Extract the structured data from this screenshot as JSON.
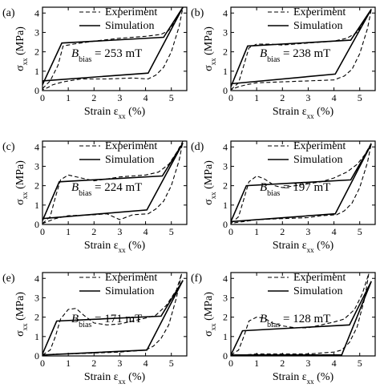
{
  "chart_data": [
    {
      "type": "line",
      "panel_label": "(a)",
      "annotation": {
        "prefix": "B",
        "subscript": "bias",
        "value_text": " = 253 mT"
      },
      "xlabel": {
        "main": "Strain ε",
        "sub": "xx",
        "unit": " (%)"
      },
      "ylabel": {
        "main": "σ",
        "sub": "xx",
        "unit": " (MPa)"
      },
      "xlim": [
        0,
        5.6
      ],
      "ylim": [
        0,
        4.3
      ],
      "xticks": [
        0,
        1,
        2,
        3,
        4,
        5
      ],
      "yticks": [
        0,
        1,
        2,
        3,
        4
      ],
      "legend": {
        "placement": "top-right",
        "entries": [
          "Experiment",
          "Simulation"
        ]
      },
      "series": [
        {
          "name": "Experiment",
          "style": "dashed",
          "x": [
            0,
            0.3,
            0.6,
            0.8,
            1.2,
            2.0,
            3.0,
            4.0,
            4.6,
            4.9,
            5.1,
            5.3,
            5.45,
            5.3,
            5.0,
            4.7,
            4.4,
            4.1,
            3.5,
            2.5,
            1.5,
            0.8,
            0.4,
            0.2,
            0
          ],
          "y": [
            0.1,
            0.5,
            1.3,
            2.3,
            2.4,
            2.55,
            2.7,
            2.8,
            2.9,
            3.1,
            3.5,
            4.0,
            4.3,
            3.3,
            2.0,
            1.2,
            0.8,
            0.6,
            0.65,
            0.6,
            0.6,
            0.45,
            0.3,
            0.15,
            0.05
          ]
        },
        {
          "name": "Simulation",
          "style": "solid",
          "x": [
            0,
            0.75,
            4.7,
            5.45,
            4.1,
            0,
            0
          ],
          "y": [
            0.3,
            2.45,
            2.75,
            4.3,
            0.9,
            0.5,
            0.3
          ]
        }
      ]
    },
    {
      "type": "line",
      "panel_label": "(b)",
      "annotation": {
        "prefix": "B",
        "subscript": "bias",
        "value_text": " = 238 mT"
      },
      "xlabel": {
        "main": "Strain ε",
        "sub": "xx",
        "unit": " (%)"
      },
      "ylabel": {
        "main": "σ",
        "sub": "xx",
        "unit": " (MPa)"
      },
      "xlim": [
        0,
        5.6
      ],
      "ylim": [
        0,
        4.3
      ],
      "xticks": [
        0,
        1,
        2,
        3,
        4,
        5
      ],
      "yticks": [
        0,
        1,
        2,
        3,
        4
      ],
      "legend": {
        "placement": "top-right",
        "entries": [
          "Experiment",
          "Simulation"
        ]
      },
      "series": [
        {
          "name": "Experiment",
          "style": "dashed",
          "x": [
            0,
            0.3,
            0.5,
            0.7,
            1.0,
            1.5,
            2.0,
            3.0,
            4.0,
            4.5,
            4.9,
            5.2,
            5.45,
            5.3,
            5.0,
            4.7,
            4.4,
            4.0,
            3.0,
            2.0,
            1.0,
            0.6,
            0.3,
            0
          ],
          "y": [
            0.05,
            0.4,
            1.3,
            2.2,
            2.4,
            2.4,
            2.35,
            2.45,
            2.55,
            2.7,
            3.0,
            3.6,
            4.2,
            3.2,
            1.9,
            1.1,
            0.75,
            0.55,
            0.5,
            0.45,
            0.4,
            0.3,
            0.2,
            0.05
          ]
        },
        {
          "name": "Simulation",
          "style": "solid",
          "x": [
            0,
            0.65,
            4.65,
            5.45,
            4.05,
            0,
            0
          ],
          "y": [
            0.2,
            2.3,
            2.6,
            4.2,
            0.85,
            0.35,
            0.2
          ]
        }
      ]
    },
    {
      "type": "line",
      "panel_label": "(c)",
      "annotation": {
        "prefix": "B",
        "subscript": "bias",
        "value_text": " = 224 mT"
      },
      "xlabel": {
        "main": "Strain ε",
        "sub": "xx",
        "unit": " (%)"
      },
      "ylabel": {
        "main": "σ",
        "sub": "xx",
        "unit": " (MPa)"
      },
      "xlim": [
        0,
        5.6
      ],
      "ylim": [
        0,
        4.3
      ],
      "xticks": [
        0,
        1,
        2,
        3,
        4,
        5
      ],
      "yticks": [
        0,
        1,
        2,
        3,
        4
      ],
      "legend": {
        "placement": "top-right",
        "entries": [
          "Experiment",
          "Simulation"
        ]
      },
      "series": [
        {
          "name": "Experiment",
          "style": "dashed",
          "x": [
            0,
            0.3,
            0.5,
            0.7,
            1.0,
            1.5,
            2.0,
            2.5,
            3.0,
            3.5,
            4.0,
            4.5,
            4.9,
            5.2,
            5.45,
            5.3,
            5.0,
            4.7,
            4.4,
            4.1,
            3.5,
            3.0,
            2.5,
            2.0,
            1.0,
            0.5,
            0.2,
            0
          ],
          "y": [
            0.05,
            0.4,
            1.4,
            2.3,
            2.55,
            2.4,
            2.25,
            2.35,
            2.45,
            2.5,
            2.55,
            2.7,
            3.1,
            3.7,
            4.3,
            3.3,
            2.0,
            1.2,
            0.8,
            0.55,
            0.5,
            0.25,
            0.55,
            0.5,
            0.45,
            0.3,
            0.15,
            0.05
          ]
        },
        {
          "name": "Simulation",
          "style": "solid",
          "x": [
            0,
            0.65,
            4.65,
            5.45,
            4.05,
            0,
            0
          ],
          "y": [
            0.2,
            2.2,
            2.5,
            4.2,
            0.75,
            0.3,
            0.2
          ]
        }
      ]
    },
    {
      "type": "line",
      "panel_label": "(d)",
      "annotation": {
        "prefix": "B",
        "subscript": "bias",
        "value_text": " = 197 mT"
      },
      "xlabel": {
        "main": "Strain ε",
        "sub": "xx",
        "unit": " (%)"
      },
      "ylabel": {
        "main": "σ",
        "sub": "xx",
        "unit": " (MPa)"
      },
      "xlim": [
        0,
        5.6
      ],
      "ylim": [
        0,
        4.3
      ],
      "xticks": [
        0,
        1,
        2,
        3,
        4,
        5
      ],
      "yticks": [
        0,
        1,
        2,
        3,
        4
      ],
      "legend": {
        "placement": "top-right",
        "entries": [
          "Experiment",
          "Simulation"
        ]
      },
      "series": [
        {
          "name": "Experiment",
          "style": "dashed",
          "x": [
            0,
            0.3,
            0.5,
            0.7,
            1.0,
            1.3,
            1.7,
            2.0,
            2.5,
            3.0,
            3.5,
            4.0,
            4.5,
            4.9,
            5.2,
            5.45,
            5.3,
            5.0,
            4.7,
            4.4,
            4.1,
            3.5,
            3.0,
            2.0,
            1.0,
            0.5,
            0.2,
            0
          ],
          "y": [
            0.05,
            0.4,
            1.3,
            2.2,
            2.5,
            2.35,
            2.0,
            1.9,
            2.0,
            2.1,
            2.2,
            2.4,
            2.7,
            3.1,
            3.6,
            4.2,
            3.2,
            1.9,
            1.1,
            0.7,
            0.5,
            0.45,
            0.35,
            0.3,
            0.25,
            0.15,
            0.1,
            0.05
          ]
        },
        {
          "name": "Simulation",
          "style": "solid",
          "x": [
            0,
            0.6,
            4.65,
            5.45,
            4.05,
            0,
            0
          ],
          "y": [
            0.15,
            2.0,
            2.3,
            4.15,
            0.55,
            0.15,
            0.15
          ]
        }
      ]
    },
    {
      "type": "line",
      "panel_label": "(e)",
      "annotation": {
        "prefix": "B",
        "subscript": "bias",
        "value_text": " = 171 mT"
      },
      "xlabel": {
        "main": "Strain ε",
        "sub": "xx",
        "unit": " (%)"
      },
      "ylabel": {
        "main": "σ",
        "sub": "xx",
        "unit": " (MPa)"
      },
      "xlim": [
        0,
        5.6
      ],
      "ylim": [
        0,
        4.3
      ],
      "xticks": [
        0,
        1,
        2,
        3,
        4,
        5
      ],
      "yticks": [
        0,
        1,
        2,
        3,
        4
      ],
      "legend": {
        "placement": "top-right",
        "entries": [
          "Experiment",
          "Simulation"
        ]
      },
      "series": [
        {
          "name": "Experiment",
          "style": "dashed",
          "x": [
            0,
            0.3,
            0.5,
            0.7,
            1.0,
            1.3,
            1.6,
            2.0,
            2.5,
            3.0,
            3.5,
            4.0,
            4.4,
            4.8,
            5.2,
            5.4,
            5.2,
            4.9,
            4.6,
            4.3,
            4.0,
            3.0,
            2.0,
            1.0,
            0.5,
            0.2,
            0
          ],
          "y": [
            0.05,
            0.3,
            1.0,
            1.9,
            2.4,
            2.45,
            2.1,
            1.7,
            1.6,
            1.65,
            1.8,
            1.95,
            2.1,
            2.6,
            3.4,
            4.25,
            3.0,
            1.6,
            0.9,
            0.5,
            0.3,
            0.2,
            0.15,
            0.1,
            0.1,
            0.05,
            0.05
          ]
        },
        {
          "name": "Simulation",
          "style": "solid",
          "x": [
            0,
            0.55,
            4.6,
            5.45,
            4.05,
            0,
            0
          ],
          "y": [
            0.1,
            1.8,
            2.05,
            3.9,
            0.3,
            0.05,
            0.1
          ]
        }
      ]
    },
    {
      "type": "line",
      "panel_label": "(f)",
      "annotation": {
        "prefix": "B",
        "subscript": "bias",
        "value_text": " = 128 mT"
      },
      "xlabel": {
        "main": "Strain ε",
        "sub": "xx",
        "unit": " (%)"
      },
      "ylabel": {
        "main": "σ",
        "sub": "xx",
        "unit": " (MPa)"
      },
      "xlim": [
        0,
        5.6
      ],
      "ylim": [
        0,
        4.3
      ],
      "xticks": [
        0,
        1,
        2,
        3,
        4,
        5
      ],
      "yticks": [
        0,
        1,
        2,
        3,
        4
      ],
      "legend": {
        "placement": "top-right",
        "entries": [
          "Experiment",
          "Simulation"
        ]
      },
      "series": [
        {
          "name": "Experiment",
          "style": "dashed",
          "x": [
            0,
            0.3,
            0.5,
            0.7,
            1.0,
            1.3,
            1.6,
            2.0,
            2.5,
            3.0,
            3.5,
            4.0,
            4.4,
            4.8,
            5.1,
            5.35,
            5.2,
            4.9,
            4.6,
            4.3,
            4.0,
            3.0,
            2.0,
            1.0,
            0.5,
            0.2,
            0
          ],
          "y": [
            0.05,
            0.3,
            1.0,
            1.8,
            2.0,
            1.95,
            1.7,
            1.55,
            1.45,
            1.45,
            1.6,
            1.75,
            1.9,
            2.4,
            3.2,
            4.25,
            3.0,
            1.5,
            0.7,
            0.3,
            0.2,
            0.1,
            0.1,
            0.1,
            0.05,
            0.05,
            0.05
          ]
        },
        {
          "name": "Simulation",
          "style": "solid",
          "x": [
            0,
            0.45,
            4.6,
            5.45,
            4.3,
            0,
            0
          ],
          "y": [
            0.05,
            1.3,
            1.6,
            3.85,
            0.05,
            0.05,
            0.05
          ]
        }
      ]
    }
  ]
}
